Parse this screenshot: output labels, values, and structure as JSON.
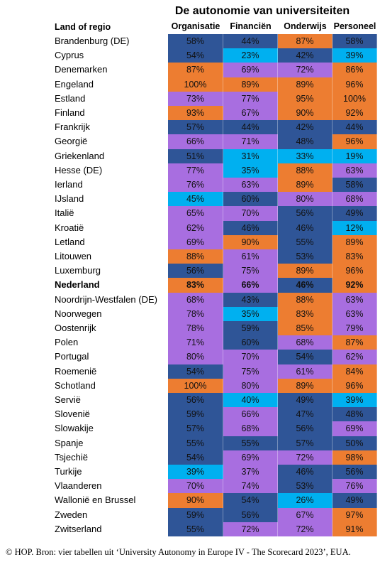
{
  "title": "De autonomie van universiteiten",
  "header": [
    "Land of regio",
    "Organisatie",
    "Financiën",
    "Onderwijs",
    "Personeel"
  ],
  "rows": [
    {
      "label": "Brandenburg (DE)",
      "values": [
        "58%",
        "44%",
        "87%",
        "58%"
      ],
      "colors": [
        "#2f5597",
        "#2f5597",
        "#ed7d31",
        "#2f5597"
      ]
    },
    {
      "label": "Cyprus",
      "values": [
        "54%",
        "23%",
        "42%",
        "39%"
      ],
      "colors": [
        "#2f5597",
        "#00b0f0",
        "#2f5597",
        "#00b0f0"
      ]
    },
    {
      "label": "Denemarken",
      "values": [
        "87%",
        "69%",
        "72%",
        "86%"
      ],
      "colors": [
        "#ed7d31",
        "#a86ee0",
        "#a86ee0",
        "#ed7d31"
      ]
    },
    {
      "label": "Engeland",
      "values": [
        "100%",
        "89%",
        "89%",
        "96%"
      ],
      "colors": [
        "#ed7d31",
        "#ed7d31",
        "#ed7d31",
        "#ed7d31"
      ]
    },
    {
      "label": "Estland",
      "values": [
        "73%",
        "77%",
        "95%",
        "100%"
      ],
      "colors": [
        "#a86ee0",
        "#a86ee0",
        "#ed7d31",
        "#ed7d31"
      ]
    },
    {
      "label": "Finland",
      "values": [
        "93%",
        "67%",
        "90%",
        "92%"
      ],
      "colors": [
        "#ed7d31",
        "#a86ee0",
        "#ed7d31",
        "#ed7d31"
      ]
    },
    {
      "label": "Frankrijk",
      "values": [
        "57%",
        "44%",
        "42%",
        "44%"
      ],
      "colors": [
        "#2f5597",
        "#2f5597",
        "#2f5597",
        "#2f5597"
      ]
    },
    {
      "label": "Georgië",
      "values": [
        "66%",
        "71%",
        "48%",
        "96%"
      ],
      "colors": [
        "#a86ee0",
        "#a86ee0",
        "#2f5597",
        "#ed7d31"
      ]
    },
    {
      "label": "Griekenland",
      "values": [
        "51%",
        "31%",
        "33%",
        "19%"
      ],
      "colors": [
        "#2f5597",
        "#00b0f0",
        "#00b0f0",
        "#00b0f0"
      ]
    },
    {
      "label": "Hesse (DE)",
      "values": [
        "77%",
        "35%",
        "88%",
        "63%"
      ],
      "colors": [
        "#a86ee0",
        "#00b0f0",
        "#ed7d31",
        "#a86ee0"
      ]
    },
    {
      "label": "Ierland",
      "values": [
        "76%",
        "63%",
        "89%",
        "58%"
      ],
      "colors": [
        "#a86ee0",
        "#a86ee0",
        "#ed7d31",
        "#2f5597"
      ]
    },
    {
      "label": "IJsland",
      "values": [
        "45%",
        "60%",
        "80%",
        "68%"
      ],
      "colors": [
        "#00b0f0",
        "#2f5597",
        "#a86ee0",
        "#a86ee0"
      ]
    },
    {
      "label": "Italië",
      "values": [
        "65%",
        "70%",
        "56%",
        "49%"
      ],
      "colors": [
        "#a86ee0",
        "#a86ee0",
        "#2f5597",
        "#2f5597"
      ]
    },
    {
      "label": "Kroatië",
      "values": [
        "62%",
        "46%",
        "46%",
        "12%"
      ],
      "colors": [
        "#a86ee0",
        "#2f5597",
        "#2f5597",
        "#00b0f0"
      ]
    },
    {
      "label": "Letland",
      "values": [
        "69%",
        "90%",
        "55%",
        "89%"
      ],
      "colors": [
        "#a86ee0",
        "#ed7d31",
        "#2f5597",
        "#ed7d31"
      ]
    },
    {
      "label": "Litouwen",
      "values": [
        "88%",
        "61%",
        "53%",
        "83%"
      ],
      "colors": [
        "#ed7d31",
        "#a86ee0",
        "#2f5597",
        "#ed7d31"
      ]
    },
    {
      "label": "Luxemburg",
      "values": [
        "56%",
        "75%",
        "89%",
        "96%"
      ],
      "colors": [
        "#2f5597",
        "#a86ee0",
        "#ed7d31",
        "#ed7d31"
      ]
    },
    {
      "label": "Nederland",
      "values": [
        "83%",
        "66%",
        "46%",
        "92%"
      ],
      "colors": [
        "#ed7d31",
        "#a86ee0",
        "#2f5597",
        "#ed7d31"
      ],
      "bold": true
    },
    {
      "label": "Noordrijn-Westfalen (DE)",
      "values": [
        "68%",
        "43%",
        "88%",
        "63%"
      ],
      "colors": [
        "#a86ee0",
        "#2f5597",
        "#ed7d31",
        "#a86ee0"
      ]
    },
    {
      "label": "Noorwegen",
      "values": [
        "78%",
        "35%",
        "83%",
        "63%"
      ],
      "colors": [
        "#a86ee0",
        "#00b0f0",
        "#ed7d31",
        "#a86ee0"
      ]
    },
    {
      "label": "Oostenrijk",
      "values": [
        "78%",
        "59%",
        "85%",
        "79%"
      ],
      "colors": [
        "#a86ee0",
        "#2f5597",
        "#ed7d31",
        "#a86ee0"
      ]
    },
    {
      "label": "Polen",
      "values": [
        "71%",
        "60%",
        "68%",
        "87%"
      ],
      "colors": [
        "#a86ee0",
        "#2f5597",
        "#a86ee0",
        "#ed7d31"
      ]
    },
    {
      "label": "Portugal",
      "values": [
        "80%",
        "70%",
        "54%",
        "62%"
      ],
      "colors": [
        "#a86ee0",
        "#a86ee0",
        "#2f5597",
        "#a86ee0"
      ]
    },
    {
      "label": "Roemenië",
      "values": [
        "54%",
        "75%",
        "61%",
        "84%"
      ],
      "colors": [
        "#2f5597",
        "#a86ee0",
        "#a86ee0",
        "#ed7d31"
      ]
    },
    {
      "label": "Schotland",
      "values": [
        "100%",
        "80%",
        "89%",
        "96%"
      ],
      "colors": [
        "#ed7d31",
        "#a86ee0",
        "#ed7d31",
        "#ed7d31"
      ]
    },
    {
      "label": "Servië",
      "values": [
        "56%",
        "40%",
        "49%",
        "39%"
      ],
      "colors": [
        "#2f5597",
        "#00b0f0",
        "#2f5597",
        "#00b0f0"
      ]
    },
    {
      "label": "Slovenië",
      "values": [
        "59%",
        "66%",
        "47%",
        "48%"
      ],
      "colors": [
        "#2f5597",
        "#a86ee0",
        "#2f5597",
        "#2f5597"
      ]
    },
    {
      "label": "Slowakije",
      "values": [
        "57%",
        "68%",
        "56%",
        "69%"
      ],
      "colors": [
        "#2f5597",
        "#a86ee0",
        "#2f5597",
        "#a86ee0"
      ]
    },
    {
      "label": "Spanje",
      "values": [
        "55%",
        "55%",
        "57%",
        "50%"
      ],
      "colors": [
        "#2f5597",
        "#2f5597",
        "#2f5597",
        "#2f5597"
      ]
    },
    {
      "label": "Tsjechië",
      "values": [
        "54%",
        "69%",
        "72%",
        "98%"
      ],
      "colors": [
        "#2f5597",
        "#a86ee0",
        "#a86ee0",
        "#ed7d31"
      ]
    },
    {
      "label": "Turkije",
      "values": [
        "39%",
        "37%",
        "46%",
        "56%"
      ],
      "colors": [
        "#00b0f0",
        "#a86ee0",
        "#2f5597",
        "#2f5597"
      ]
    },
    {
      "label": "Vlaanderen",
      "values": [
        "70%",
        "74%",
        "53%",
        "76%"
      ],
      "colors": [
        "#a86ee0",
        "#a86ee0",
        "#2f5597",
        "#a86ee0"
      ]
    },
    {
      "label": "Wallonië en Brussel",
      "values": [
        "90%",
        "54%",
        "26%",
        "49%"
      ],
      "colors": [
        "#ed7d31",
        "#2f5597",
        "#00b0f0",
        "#2f5597"
      ]
    },
    {
      "label": "Zweden",
      "values": [
        "59%",
        "56%",
        "67%",
        "97%"
      ],
      "colors": [
        "#2f5597",
        "#2f5597",
        "#a86ee0",
        "#ed7d31"
      ]
    },
    {
      "label": "Zwitserland",
      "values": [
        "55%",
        "72%",
        "72%",
        "91%"
      ],
      "colors": [
        "#2f5597",
        "#a86ee0",
        "#a86ee0",
        "#ed7d31"
      ]
    }
  ],
  "footer": "© HOP. Bron: vier tabellen uit ‘University Autonomy in Europe IV - The Scorecard 2023’, EUA."
}
